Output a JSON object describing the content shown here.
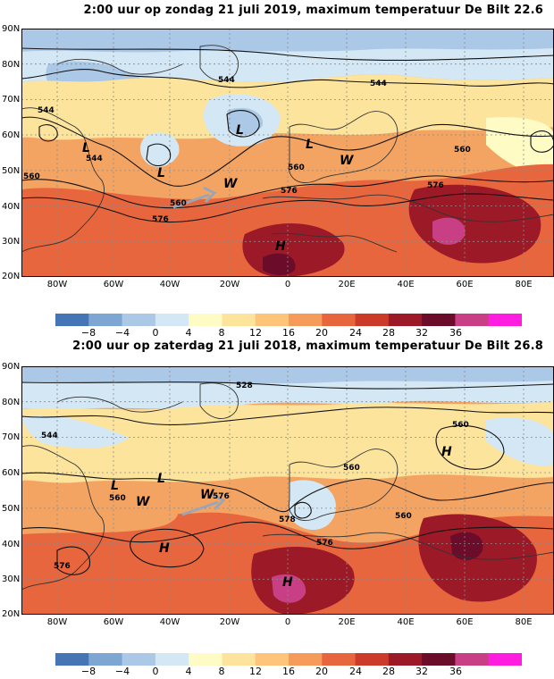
{
  "panels": [
    {
      "title": "2:00 uur op zondag 21 juli 2019, maximum temperatuur De Bilt 22.6",
      "lat_labels": [
        "90N",
        "80N",
        "70N",
        "60N",
        "50N",
        "40N",
        "30N",
        "20N"
      ],
      "lon_labels": [
        "80W",
        "60W",
        "40W",
        "20W",
        "0",
        "20E",
        "40E",
        "60E",
        "80E"
      ],
      "contour_labels": [
        "544",
        "544",
        "544",
        "544",
        "560",
        "560",
        "560",
        "576",
        "576",
        "576",
        "560"
      ],
      "pressure_labels": [
        "L",
        "L",
        "L",
        "L",
        "H"
      ],
      "wind_labels": [
        "W",
        "W"
      ]
    },
    {
      "title": "2:00 uur op zaterdag 21 juli 2018, maximum temperatuur De Bilt 26.8",
      "lat_labels": [
        "90N",
        "80N",
        "70N",
        "60N",
        "50N",
        "40N",
        "30N",
        "20N"
      ],
      "lon_labels": [
        "80W",
        "60W",
        "40W",
        "20W",
        "0",
        "20E",
        "40E",
        "60E",
        "80E"
      ],
      "contour_labels": [
        "528",
        "544",
        "560",
        "576",
        "560",
        "560",
        "560",
        "576",
        "578",
        "576"
      ],
      "pressure_labels": [
        "L",
        "L",
        "H",
        "H",
        "H"
      ],
      "wind_labels": [
        "W",
        "W"
      ]
    }
  ],
  "colorbar": {
    "ticks": [
      "−8",
      "−4",
      "0",
      "4",
      "8",
      "12",
      "16",
      "20",
      "24",
      "28",
      "32",
      "36"
    ],
    "colors": [
      "#4575b4",
      "#7ea6d2",
      "#abc8e6",
      "#d4e7f4",
      "#fffbc4",
      "#fde49c",
      "#fdc47a",
      "#f69c5a",
      "#e8663d",
      "#cc3a2a",
      "#9c1a28",
      "#6b0c2b",
      "#c83f86",
      "#ff1ee0"
    ]
  }
}
